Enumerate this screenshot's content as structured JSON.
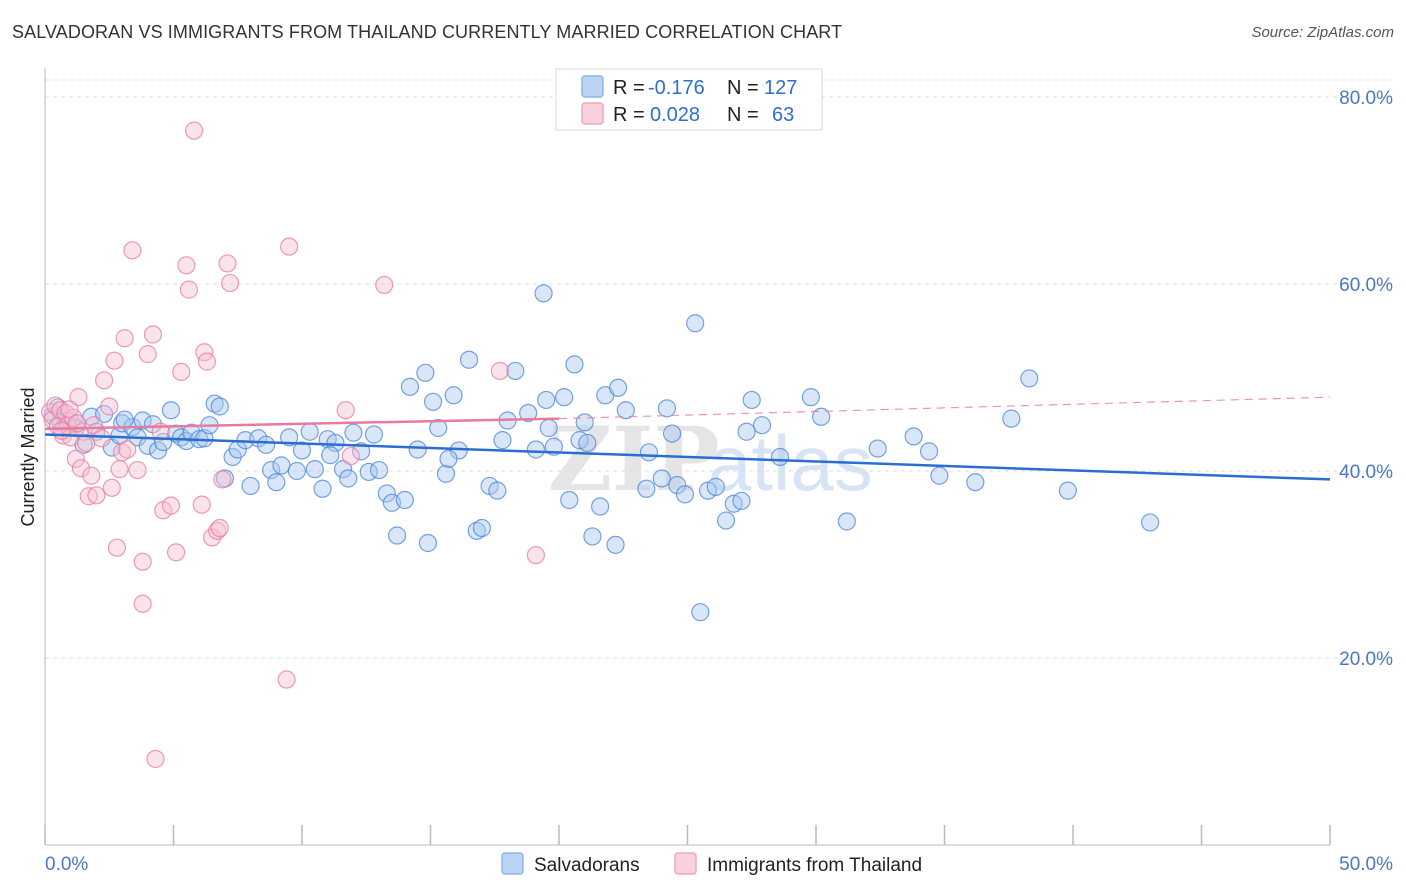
{
  "title": "SALVADORAN VS IMMIGRANTS FROM THAILAND CURRENTLY MARRIED CORRELATION CHART",
  "source": "Source: ZipAtlas.com",
  "watermark": {
    "zip": "ZIP",
    "atlas": "atlas"
  },
  "legend": {
    "rows": [
      {
        "r_label": "R =",
        "r_value": "-0.176",
        "n_label": "N =",
        "n_value": "127",
        "color": "#8fb6ea"
      },
      {
        "r_label": "R =",
        "r_value": "0.028",
        "n_label": "N =",
        "n_value": "63",
        "color": "#f2a6bf"
      }
    ]
  },
  "bottom_legend": [
    {
      "label": "Salvadorans",
      "color": "#8fb6ea"
    },
    {
      "label": "Immigrants from Thailand",
      "color": "#f2a6bf"
    }
  ],
  "chart_data": {
    "type": "scatter",
    "title": "SALVADORAN VS IMMIGRANTS FROM THAILAND CURRENTLY MARRIED CORRELATION CHART",
    "ylabel": "Currently Married",
    "xlabel": "",
    "xlim": [
      0,
      50
    ],
    "ylim": [
      0,
      80
    ],
    "x_ticks": [
      0,
      50
    ],
    "x_tick_labels": [
      "0.0%",
      "50.0%"
    ],
    "y_ticks": [
      20,
      40,
      60,
      80
    ],
    "y_tick_labels": [
      "20.0%",
      "40.0%",
      "60.0%",
      "80.0%"
    ],
    "grid": "horizontal dashed",
    "series": [
      {
        "name": "Salvadorans",
        "color": "#4a86d8",
        "fill": "#a9c8f0",
        "trend": {
          "x": [
            0,
            50
          ],
          "y": [
            43.9,
            39.1
          ],
          "style": "solid"
        },
        "points": [
          [
            0.3,
            45.9
          ],
          [
            0.5,
            46.8
          ],
          [
            0.6,
            45.2
          ],
          [
            0.8,
            44.9
          ],
          [
            1.0,
            45.3
          ],
          [
            1.2,
            44.6
          ],
          [
            1.5,
            42.8
          ],
          [
            1.8,
            45.8
          ],
          [
            2.0,
            44.2
          ],
          [
            2.3,
            46.1
          ],
          [
            2.6,
            42.5
          ],
          [
            2.9,
            43.8
          ],
          [
            3.0,
            45.1
          ],
          [
            3.4,
            44.7
          ],
          [
            3.6,
            43.6
          ],
          [
            3.8,
            45.4
          ],
          [
            4.0,
            42.7
          ],
          [
            4.2,
            45.0
          ],
          [
            4.4,
            42.2
          ],
          [
            4.6,
            43.1
          ],
          [
            4.9,
            46.5
          ],
          [
            5.1,
            44.0
          ],
          [
            5.3,
            43.6
          ],
          [
            5.5,
            43.2
          ],
          [
            5.7,
            44.1
          ],
          [
            6.0,
            43.4
          ],
          [
            6.2,
            43.5
          ],
          [
            6.4,
            44.9
          ],
          [
            6.6,
            47.2
          ],
          [
            6.8,
            46.9
          ],
          [
            7.0,
            39.2
          ],
          [
            7.3,
            41.5
          ],
          [
            7.5,
            42.3
          ],
          [
            7.8,
            43.3
          ],
          [
            8.0,
            38.4
          ],
          [
            8.3,
            43.5
          ],
          [
            8.6,
            42.8
          ],
          [
            8.8,
            40.1
          ],
          [
            9.0,
            38.8
          ],
          [
            9.2,
            40.6
          ],
          [
            9.5,
            43.6
          ],
          [
            9.8,
            40.0
          ],
          [
            10.0,
            42.2
          ],
          [
            10.3,
            44.2
          ],
          [
            10.5,
            40.2
          ],
          [
            10.8,
            38.1
          ],
          [
            11.0,
            43.4
          ],
          [
            11.3,
            43.0
          ],
          [
            11.6,
            40.2
          ],
          [
            11.8,
            39.2
          ],
          [
            12.0,
            44.1
          ],
          [
            12.3,
            42.1
          ],
          [
            12.6,
            39.9
          ],
          [
            12.8,
            43.9
          ],
          [
            13.0,
            40.1
          ],
          [
            13.3,
            37.6
          ],
          [
            13.5,
            36.6
          ],
          [
            13.7,
            33.1
          ],
          [
            14.0,
            36.9
          ],
          [
            14.2,
            49.0
          ],
          [
            14.5,
            42.3
          ],
          [
            14.8,
            50.5
          ],
          [
            14.9,
            32.3
          ],
          [
            15.1,
            47.4
          ],
          [
            15.3,
            44.6
          ],
          [
            15.6,
            39.7
          ],
          [
            15.9,
            48.1
          ],
          [
            16.1,
            42.2
          ],
          [
            16.5,
            51.9
          ],
          [
            16.8,
            33.6
          ],
          [
            17.0,
            33.9
          ],
          [
            17.3,
            38.4
          ],
          [
            17.6,
            37.9
          ],
          [
            17.8,
            43.3
          ],
          [
            18.0,
            45.4
          ],
          [
            18.3,
            50.7
          ],
          [
            18.8,
            46.2
          ],
          [
            19.1,
            42.3
          ],
          [
            19.4,
            59.0
          ],
          [
            19.5,
            47.6
          ],
          [
            19.8,
            42.6
          ],
          [
            20.2,
            47.9
          ],
          [
            20.4,
            36.9
          ],
          [
            20.6,
            51.4
          ],
          [
            20.8,
            43.3
          ],
          [
            21.1,
            43.0
          ],
          [
            21.3,
            33.0
          ],
          [
            21.6,
            36.2
          ],
          [
            21.8,
            48.1
          ],
          [
            22.2,
            32.1
          ],
          [
            22.3,
            48.9
          ],
          [
            22.6,
            46.5
          ],
          [
            23.4,
            38.1
          ],
          [
            23.5,
            42.0
          ],
          [
            24.0,
            39.2
          ],
          [
            24.2,
            46.7
          ],
          [
            24.4,
            44.0
          ],
          [
            24.6,
            38.5
          ],
          [
            24.9,
            37.5
          ],
          [
            25.3,
            55.8
          ],
          [
            25.5,
            24.9
          ],
          [
            25.8,
            37.9
          ],
          [
            26.1,
            38.3
          ],
          [
            26.5,
            34.7
          ],
          [
            26.8,
            36.5
          ],
          [
            27.1,
            36.8
          ],
          [
            27.5,
            47.6
          ],
          [
            27.9,
            44.9
          ],
          [
            28.6,
            41.5
          ],
          [
            29.8,
            47.9
          ],
          [
            30.2,
            45.8
          ],
          [
            31.2,
            34.6
          ],
          [
            32.4,
            42.4
          ],
          [
            33.8,
            43.7
          ],
          [
            34.4,
            42.1
          ],
          [
            36.2,
            38.8
          ],
          [
            37.6,
            45.6
          ],
          [
            38.3,
            49.9
          ],
          [
            39.8,
            37.9
          ],
          [
            43.0,
            34.5
          ],
          [
            3.1,
            45.5
          ],
          [
            11.1,
            41.7
          ],
          [
            15.7,
            41.3
          ],
          [
            21.0,
            45.2
          ],
          [
            27.3,
            44.2
          ],
          [
            34.8,
            39.5
          ],
          [
            19.6,
            44.6
          ]
        ]
      },
      {
        "name": "Immigrants from Thailand",
        "color": "#e8799f",
        "fill": "#f7c2d3",
        "trend": {
          "x": [
            0,
            20
          ],
          "y": [
            44.5,
            45.6
          ],
          "style": "solid",
          "extended": {
            "x": [
              20,
              50
            ],
            "y": [
              45.6,
              47.9
            ],
            "style": "dashed"
          }
        },
        "points": [
          [
            0.2,
            46.3
          ],
          [
            0.3,
            45.5
          ],
          [
            0.4,
            47.0
          ],
          [
            0.5,
            44.8
          ],
          [
            0.6,
            46.5
          ],
          [
            0.7,
            43.8
          ],
          [
            0.8,
            46.2
          ],
          [
            0.9,
            44.9
          ],
          [
            1.0,
            43.6
          ],
          [
            1.2,
            41.3
          ],
          [
            1.3,
            47.9
          ],
          [
            1.4,
            40.3
          ],
          [
            1.5,
            44.2
          ],
          [
            1.6,
            43.0
          ],
          [
            1.7,
            37.3
          ],
          [
            1.8,
            39.5
          ],
          [
            1.9,
            44.9
          ],
          [
            2.0,
            37.4
          ],
          [
            2.3,
            49.7
          ],
          [
            2.5,
            46.9
          ],
          [
            2.6,
            38.2
          ],
          [
            2.7,
            51.8
          ],
          [
            2.8,
            31.8
          ],
          [
            3.0,
            42.0
          ],
          [
            3.1,
            54.2
          ],
          [
            3.2,
            42.3
          ],
          [
            3.4,
            63.6
          ],
          [
            3.6,
            40.1
          ],
          [
            3.8,
            30.3
          ],
          [
            3.8,
            25.8
          ],
          [
            4.0,
            52.5
          ],
          [
            4.2,
            54.6
          ],
          [
            4.5,
            44.2
          ],
          [
            4.6,
            35.8
          ],
          [
            4.9,
            36.3
          ],
          [
            5.1,
            31.3
          ],
          [
            5.3,
            50.6
          ],
          [
            5.5,
            62.0
          ],
          [
            5.6,
            59.4
          ],
          [
            5.8,
            76.4
          ],
          [
            6.1,
            36.4
          ],
          [
            6.2,
            52.7
          ],
          [
            6.3,
            51.7
          ],
          [
            6.5,
            32.9
          ],
          [
            6.7,
            33.6
          ],
          [
            6.8,
            33.9
          ],
          [
            6.9,
            39.1
          ],
          [
            7.1,
            62.2
          ],
          [
            7.2,
            60.1
          ],
          [
            9.4,
            17.7
          ],
          [
            9.5,
            64.0
          ],
          [
            11.7,
            46.5
          ],
          [
            11.9,
            41.6
          ],
          [
            13.2,
            59.9
          ],
          [
            17.7,
            50.7
          ],
          [
            19.1,
            31.0
          ],
          [
            4.3,
            9.2
          ],
          [
            1.1,
            45.7
          ],
          [
            2.2,
            43.5
          ],
          [
            0.95,
            46.6
          ],
          [
            1.25,
            45.1
          ],
          [
            0.65,
            44.3
          ],
          [
            2.9,
            40.2
          ]
        ]
      }
    ]
  }
}
